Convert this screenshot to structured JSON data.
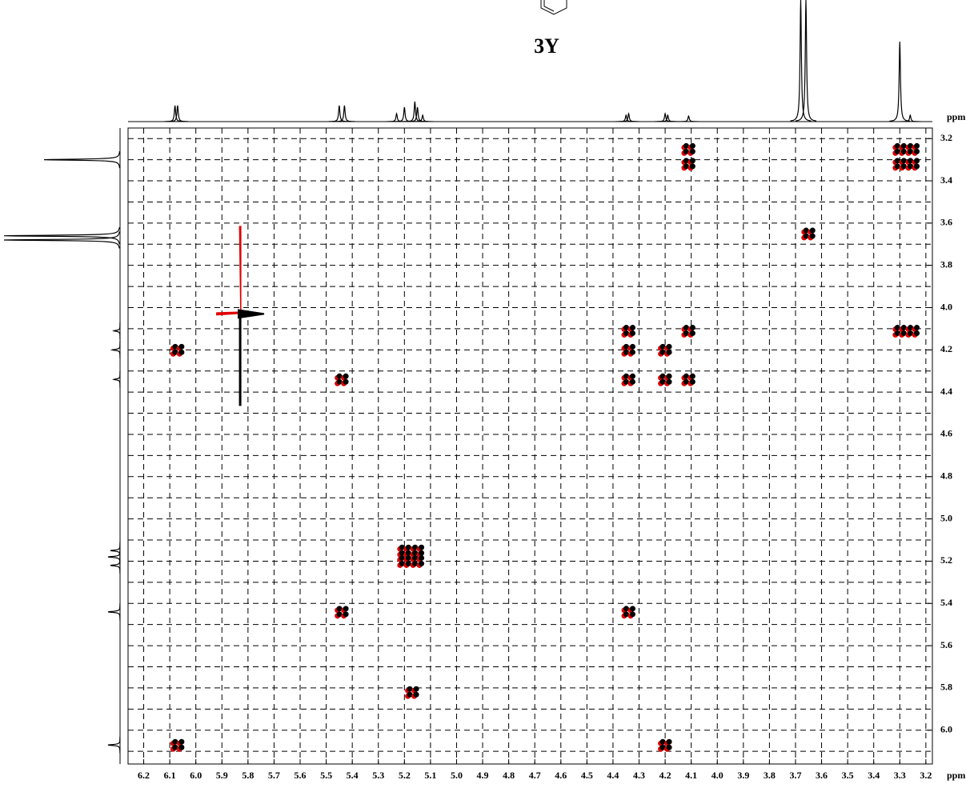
{
  "chart_data": {
    "type": "scatter",
    "title": "3Y",
    "xlabel": "ppm",
    "ylabel": "ppm",
    "xlim": [
      6.26,
      3.175
    ],
    "ylim": [
      3.15,
      6.16
    ],
    "xticks": [
      6.2,
      6.1,
      {
        "value": 6,
        "label": "6.0"
      },
      5.9,
      5.8,
      5.7,
      5.6,
      5.5,
      5.4,
      5.3,
      5.2,
      5.1,
      {
        "value": 5,
        "label": "5.0"
      },
      4.9,
      4.8,
      4.7,
      4.6,
      4.5,
      4.4,
      4.3,
      4.2,
      4.1,
      {
        "value": 4,
        "label": "4.0"
      },
      3.9,
      3.8,
      3.7,
      3.6,
      3.5,
      3.4,
      3.3,
      3.2
    ],
    "yticks": [
      3.2,
      3.4,
      3.6,
      3.8,
      {
        "value": 4,
        "label": "4.0"
      },
      4.2,
      4.4,
      4.6,
      4.8,
      {
        "value": 5,
        "label": "5.0"
      },
      5.2,
      5.4,
      5.6,
      5.8,
      {
        "value": 6,
        "label": "6.0"
      }
    ],
    "ygrid": [
      3.3,
      3.5,
      3.7,
      3.9,
      4.1,
      4.3,
      4.5,
      4.7,
      4.9,
      5.1,
      5.3,
      5.5,
      5.7,
      5.9,
      6.1
    ],
    "grid": true,
    "color": "#000000",
    "color2": "#e00000",
    "x": [
      6.07,
      4.2,
      6.07,
      5.44,
      4.34,
      5.44,
      5.17,
      4.34,
      4.34,
      4.34,
      4.2,
      4.2,
      4.11,
      4.11,
      4.11,
      4.11,
      3.3,
      3.25,
      3.3,
      3.3,
      3.25,
      3.25,
      3.65,
      5.2,
      5.2,
      5.15,
      5.15
    ],
    "y": [
      4.2,
      6.07,
      6.07,
      4.34,
      5.44,
      5.44,
      5.82,
      4.11,
      4.2,
      4.34,
      4.2,
      4.34,
      4.11,
      4.34,
      3.25,
      3.32,
      4.11,
      4.11,
      3.25,
      3.32,
      3.25,
      3.32,
      3.65,
      5.15,
      5.2,
      5.15,
      5.2
    ],
    "artifact": {
      "x": 5.83,
      "y": 4.03
    },
    "top_spectrum": {
      "x": [
        6.08,
        6.07,
        5.45,
        5.43,
        5.23,
        5.2,
        5.16,
        5.15,
        5.13,
        4.35,
        4.34,
        4.2,
        4.19,
        4.11,
        3.68,
        3.66,
        3.3,
        3.26
      ],
      "values": [
        20,
        20,
        20,
        20,
        10,
        18,
        25,
        18,
        8,
        8,
        10,
        10,
        8,
        7,
        152,
        152,
        100,
        8
      ]
    },
    "left_spectrum": {
      "x": [
        6.07,
        5.44,
        5.22,
        5.18,
        5.15,
        4.34,
        4.2,
        4.11,
        3.68,
        3.66,
        3.3
      ],
      "values": [
        15,
        15,
        12,
        15,
        12,
        8,
        10,
        8,
        145,
        145,
        95
      ]
    }
  }
}
